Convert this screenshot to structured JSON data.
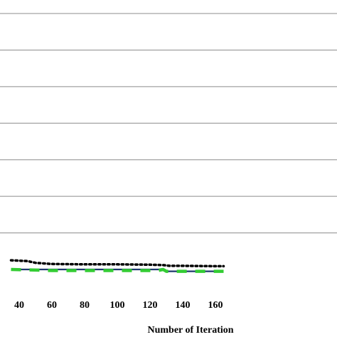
{
  "chart_data": {
    "type": "line",
    "title": "",
    "xlabel": "Number  of Iteration",
    "ylabel": "",
    "xlim": [
      35,
      165
    ],
    "ylim": [
      0,
      7
    ],
    "grid": "horizontal",
    "x_ticks": [
      40,
      60,
      80,
      100,
      120,
      140,
      160
    ],
    "y_gridlines": [
      1,
      2,
      3,
      4,
      5,
      6,
      7
    ],
    "series": [
      {
        "color": "#000000",
        "style": "dotted",
        "x": [
          35,
          45,
          50,
          60,
          80,
          100,
          120,
          128,
          132,
          140,
          160,
          165
        ],
        "y": [
          0.25,
          0.23,
          0.18,
          0.15,
          0.14,
          0.14,
          0.13,
          0.12,
          0.1,
          0.1,
          0.09,
          0.09
        ]
      },
      {
        "color": "#1f3a6e",
        "style": "solid",
        "x": [
          35,
          60,
          100,
          125,
          128,
          130,
          140,
          160,
          165
        ],
        "y": [
          0.0,
          0.0,
          0.0,
          0.0,
          0.02,
          -0.05,
          -0.05,
          -0.05,
          -0.05
        ]
      },
      {
        "color": "#33cc33",
        "style": "dashed",
        "x": [
          35,
          60,
          100,
          125,
          128,
          130,
          140,
          160,
          165
        ],
        "y": [
          0.0,
          -0.03,
          -0.03,
          -0.03,
          0.0,
          -0.05,
          -0.05,
          -0.05,
          -0.05
        ]
      }
    ]
  }
}
